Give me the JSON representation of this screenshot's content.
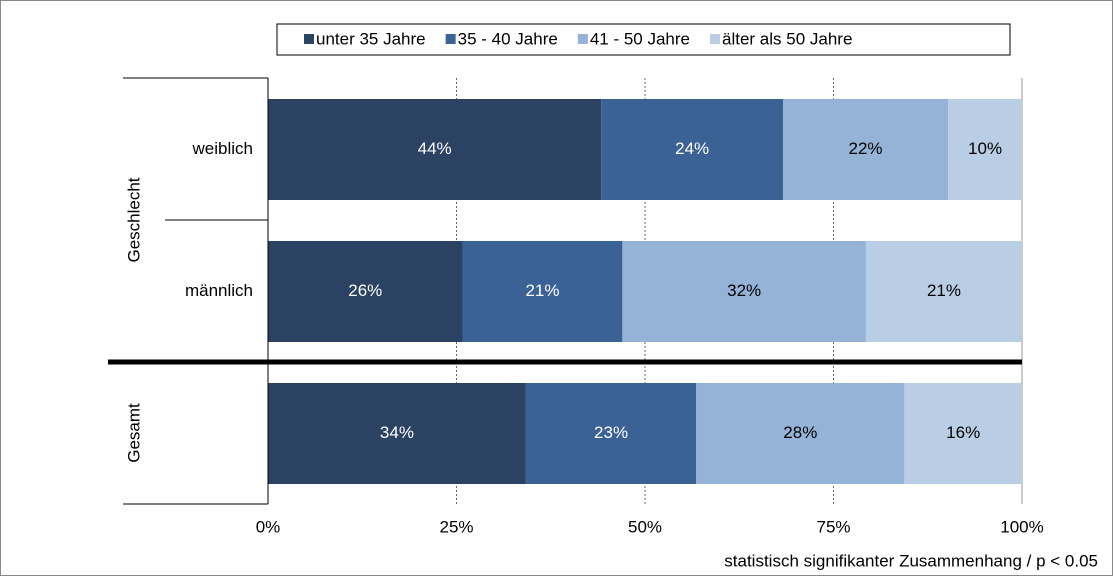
{
  "chart_data": {
    "type": "stacked_barh",
    "categories": [
      "weiblich",
      "männlich",
      null
    ],
    "groups": [
      "Geschlecht",
      "Gesamt"
    ],
    "series": [
      {
        "name": "unter 35 Jahre",
        "color": "#2b4262",
        "text_color": "#ffffff",
        "values": [
          44.2,
          25.8,
          34.2
        ],
        "value_labels": [
          "44%",
          "26%",
          "34%"
        ]
      },
      {
        "name": "35 - 40 Jahre",
        "color": "#3a6294",
        "text_color": "#ffffff",
        "values": [
          24.1,
          21.2,
          22.6
        ],
        "value_labels": [
          "24%",
          "21%",
          "23%"
        ]
      },
      {
        "name": "41 - 50 Jahre",
        "color": "#95b3d7",
        "text_color": "#000000",
        "values": [
          21.9,
          32.3,
          27.6
        ],
        "value_labels": [
          "22%",
          "32%",
          "28%"
        ]
      },
      {
        "name": "älter als 50 Jahre",
        "color": "#b9cde5",
        "text_color": "#000000",
        "values": [
          9.8,
          20.7,
          15.6
        ],
        "value_labels": [
          "10%",
          "21%",
          "16%"
        ]
      }
    ],
    "xlim": [
      0,
      100
    ],
    "xticks": [
      {
        "value": 0,
        "label": "0%"
      },
      {
        "value": 25,
        "label": "25%"
      },
      {
        "value": 50,
        "label": "50%"
      },
      {
        "value": 75,
        "label": "75%"
      },
      {
        "value": 100,
        "label": "100%"
      }
    ],
    "grid": true,
    "legend": "top",
    "note": "statistisch signifikanter Zusammenhang / p < 0.05"
  }
}
